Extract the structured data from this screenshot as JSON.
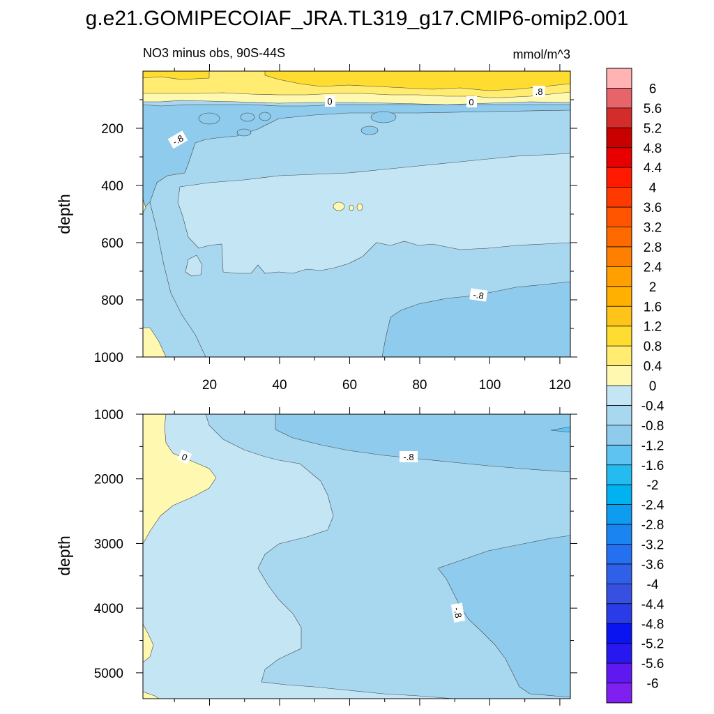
{
  "figure": {
    "title": "g.e21.GOMIPECOIAF_JRA.TL319_g17.CMIP6-omip2.001",
    "subtitle_left": "NO3 minus obs, 90S-44S",
    "subtitle_right": "mmol/m^3"
  },
  "chart_data": [
    {
      "type": "contour",
      "name": "upper panel",
      "ylabel": "depth",
      "xlabel": "",
      "x_ticks": [
        20,
        40,
        60,
        80,
        100,
        120
      ],
      "xlim": [
        1,
        123
      ],
      "y_ticks": [
        200,
        400,
        600,
        800,
        1000
      ],
      "ylim": [
        0,
        1000
      ],
      "y_reversed": true,
      "contour_labels": [
        "0",
        "0",
        ".8",
        "-.8",
        "-.8"
      ],
      "regions_description": [
        {
          "level_range": [
            0.4,
            0.8
          ],
          "location": "surface layer above ~100 m"
        },
        {
          "level_range": [
            -0.8,
            -0.4
          ],
          "location": "~130-400 m and 600-1000 m"
        },
        {
          "level_range": [
            -0.4,
            0
          ],
          "location": "~350-700 m"
        },
        {
          "level_range": [
            -1.2,
            -0.8
          ],
          "location": "x 70-123 below ~780 m; near-surface patches"
        }
      ]
    },
    {
      "type": "contour",
      "name": "lower panel",
      "ylabel": "depth",
      "xlabel": "",
      "y_ticks": [
        1000,
        2000,
        3000,
        4000,
        5000
      ],
      "ylim": [
        1000,
        5400
      ],
      "y_reversed": true,
      "contour_labels": [
        "0",
        "-.8",
        "-.8"
      ],
      "regions_description": [
        {
          "level_range": [
            0,
            0.4
          ],
          "location": "left edge x<20, 1000-3000 m"
        },
        {
          "level_range": [
            -0.4,
            0
          ],
          "location": "x 1-60 most depths"
        },
        {
          "level_range": [
            -0.8,
            -0.4
          ],
          "location": "x 40-123"
        },
        {
          "level_range": [
            -1.2,
            -0.8
          ],
          "location": "upper right 1000-1900 m and lower right 2900-5300 m"
        }
      ]
    }
  ],
  "colorbar": {
    "labels": [
      "6",
      "5.6",
      "5.2",
      "4.8",
      "4.4",
      "4",
      "3.6",
      "3.2",
      "2.8",
      "2.4",
      "2",
      "1.6",
      "1.2",
      "0.8",
      "0.4",
      "0",
      "-0.4",
      "-0.8",
      "-1.2",
      "-1.6",
      "-2",
      "-2.4",
      "-2.8",
      "-3.2",
      "-3.6",
      "-4",
      "-4.4",
      "-4.8",
      "-5.2",
      "-5.6",
      "-6"
    ],
    "colors": [
      "#ffb3b3",
      "#e8646b",
      "#d42b2b",
      "#c80000",
      "#e80000",
      "#ff1a00",
      "#ff3a00",
      "#ff5500",
      "#ff6a00",
      "#ff8000",
      "#ffa000",
      "#ffb000",
      "#ffc41a",
      "#ffdc30",
      "#ffec70",
      "#fff8b0",
      "#c4e5f4",
      "#a8d8f0",
      "#8ecbec",
      "#5ec3f0",
      "#24bbf0",
      "#00b2f0",
      "#0d9cf0",
      "#1a85f0",
      "#2570f0",
      "#3060e8",
      "#3750e0",
      "#2a3ce8",
      "#0a14f0",
      "#2818f0",
      "#6018f0",
      "#8020f0"
    ]
  }
}
